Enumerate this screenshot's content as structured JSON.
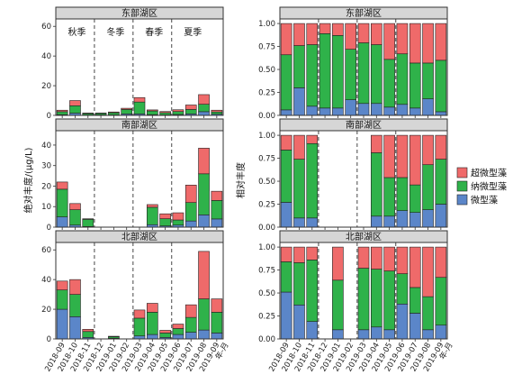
{
  "figure": {
    "ylabel_left": "绝对丰度/(μg/L)",
    "ylabel_right": "相对丰度",
    "x_suffix": "年-月",
    "seasons": [
      "秋季",
      "冬季",
      "春季",
      "夏季"
    ]
  },
  "colors": {
    "微型藻": "#5b86c9",
    "纳微型藻": "#2fb24a",
    "超微型藻": "#ef6a6a",
    "strip_bg": "#d6d6d6",
    "frame": "#333333"
  },
  "chart_data": {
    "type": "bar",
    "categories": [
      "2018-09",
      "2018-10",
      "2018-11",
      "2018-12",
      "2019-01",
      "2019-02",
      "2019-03",
      "2019-04",
      "2019-05",
      "2019-06",
      "2019-07",
      "2019-08",
      "2019-09"
    ],
    "series_order": [
      "微型藻",
      "纳微型藻",
      "超微型藻"
    ],
    "legend": [
      {
        "name": "超微型藻",
        "color_key": "超微型藻"
      },
      {
        "name": "纳微型藻",
        "color_key": "纳微型藻"
      },
      {
        "name": "微型藻",
        "color_key": "微型藻"
      }
    ],
    "panels": [
      {
        "id": "east-absolute",
        "strip": "东部湖区",
        "kind": "absolute",
        "ylim": [
          0,
          65
        ],
        "yticks": [
          0,
          20,
          40,
          60
        ],
        "series": [
          {
            "name": "微型藻",
            "values": [
              0.5,
              1.5,
              0.2,
              0.3,
              0.3,
              1,
              1,
              0.5,
              0.3,
              0.6,
              1,
              2.5,
              0.8
            ]
          },
          {
            "name": "纳微型藻",
            "values": [
              2,
              5,
              1,
              1,
              1.5,
              3,
              8,
              2.5,
              1.5,
              2,
              3,
              5,
              1.5
            ]
          },
          {
            "name": "超微型藻",
            "values": [
              1,
              3.5,
              0.4,
              0.3,
              0.5,
              0.8,
              3,
              0.7,
              0.8,
              1.2,
              3,
              6.5,
              1.2
            ]
          }
        ]
      },
      {
        "id": "east-relative",
        "strip": "东部湖区",
        "kind": "relative",
        "ylim": [
          0,
          1.05
        ],
        "yticks": [
          0,
          0.25,
          0.5,
          0.75,
          1
        ],
        "series": [
          {
            "name": "微型藻",
            "values": [
              0.06,
              0.3,
              0.1,
              0.08,
              0.08,
              0.17,
              0.13,
              0.13,
              0.09,
              0.12,
              0.08,
              0.18,
              0.04
            ]
          },
          {
            "name": "纳微型藻",
            "values": [
              0.6,
              0.46,
              0.67,
              0.81,
              0.79,
              0.55,
              0.66,
              0.64,
              0.52,
              0.55,
              0.49,
              0.39,
              0.56
            ]
          },
          {
            "name": "超微型藻",
            "values": [
              0.34,
              0.24,
              0.23,
              0.11,
              0.13,
              0.28,
              0.21,
              0.23,
              0.39,
              0.33,
              0.43,
              0.43,
              0.4
            ]
          }
        ]
      },
      {
        "id": "south-absolute",
        "strip": "南部湖区",
        "kind": "absolute",
        "ylim": [
          0,
          47
        ],
        "yticks": [
          0,
          10,
          20,
          30,
          40
        ],
        "series": [
          {
            "name": "微型藻",
            "values": [
              5,
              1,
              0.3,
              0,
              0,
              0,
              0,
              1.2,
              0.6,
              1,
              3,
              6,
              4
            ]
          },
          {
            "name": "纳微型藻",
            "values": [
              13.5,
              7.5,
              3.5,
              0,
              0,
              0,
              0,
              8.5,
              3.5,
              2.5,
              9,
              20,
              9
            ]
          },
          {
            "name": "超微型藻",
            "values": [
              3.5,
              3,
              0.3,
              0,
              0,
              0,
              0,
              1.3,
              2.4,
              3.5,
              8.5,
              12.5,
              4.5
            ]
          }
        ]
      },
      {
        "id": "south-relative",
        "strip": "南部湖区",
        "kind": "relative",
        "ylim": [
          0,
          1.05
        ],
        "yticks": [
          0,
          0.25,
          0.5,
          0.75,
          1
        ],
        "series": [
          {
            "name": "微型藻",
            "values": [
              0.27,
              0.1,
              0.1,
              0,
              0,
              0,
              0,
              0.12,
              0.12,
              0.18,
              0.16,
              0.19,
              0.25
            ]
          },
          {
            "name": "纳微型藻",
            "values": [
              0.57,
              0.64,
              0.81,
              0,
              0,
              0,
              0,
              0.69,
              0.42,
              0.36,
              0.3,
              0.49,
              0.49
            ]
          },
          {
            "name": "超微型藻",
            "values": [
              0.16,
              0.26,
              0.09,
              0,
              0,
              0,
              0,
              0.19,
              0.46,
              0.46,
              0.54,
              0.32,
              0.26
            ]
          }
        ]
      },
      {
        "id": "north-absolute",
        "strip": "北部湖区",
        "kind": "absolute",
        "ylim": [
          0,
          65
        ],
        "yticks": [
          0,
          20,
          40,
          60
        ],
        "series": [
          {
            "name": "微型藻",
            "values": [
              20,
              15,
              1,
              0,
              0.5,
              0,
              2,
              3,
              1,
              3,
              4.5,
              6,
              4
            ]
          },
          {
            "name": "纳微型藻",
            "values": [
              13,
              15,
              4,
              0,
              1,
              0,
              12,
              15,
              3,
              4,
              10,
              21,
              14
            ]
          },
          {
            "name": "超微型藻",
            "values": [
              6,
              10,
              1.5,
              0,
              0.3,
              0,
              5.5,
              6,
              1.8,
              3,
              8.5,
              32,
              9
            ]
          }
        ]
      },
      {
        "id": "north-relative",
        "strip": "北部湖区",
        "kind": "relative",
        "ylim": [
          0,
          1.05
        ],
        "yticks": [
          0,
          0.25,
          0.5,
          0.75,
          1
        ],
        "series": [
          {
            "name": "微型藻",
            "values": [
              0.51,
              0.37,
              0.19,
              0,
              0.1,
              0,
              0.1,
              0.13,
              0.1,
              0.38,
              0.28,
              0.1,
              0.15
            ]
          },
          {
            "name": "纳微型藻",
            "values": [
              0.33,
              0.46,
              0.67,
              0,
              0.54,
              0,
              0.67,
              0.63,
              0.64,
              0.33,
              0.28,
              0.36,
              0.52
            ]
          },
          {
            "name": "超微型藻",
            "values": [
              0.16,
              0.17,
              0.14,
              0,
              0.36,
              0,
              0.23,
              0.24,
              0.26,
              0.29,
              0.44,
              0.54,
              0.33
            ]
          }
        ]
      }
    ]
  }
}
